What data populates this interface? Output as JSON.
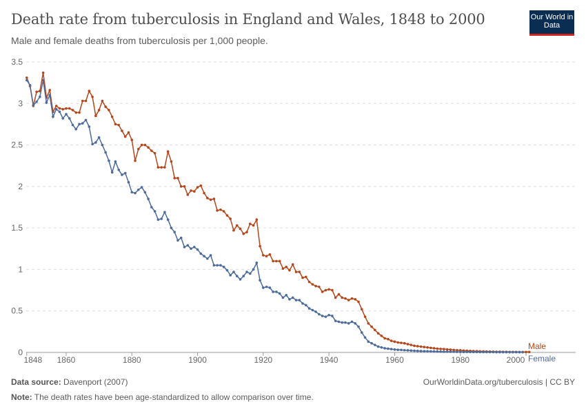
{
  "header": {
    "title": "Death rate from tuberculosis in England and Wales, 1848 to 2000",
    "subtitle": "Male and female deaths from tuberculosis per 1,000 people.",
    "logo_text": "Our World in Data"
  },
  "footer": {
    "source_label": "Data source:",
    "source": "Davenport (2007)",
    "url": "OurWorldinData.org/tuberculosis | CC BY",
    "note_label": "Note:",
    "note": "The death rates have been age-standardized to allow comparison over time."
  },
  "chart_data": {
    "type": "line",
    "title": "Death rate from tuberculosis in England and Wales, 1848 to 2000",
    "x_start": 1848,
    "x_end": 2000,
    "xlim": [
      1848,
      2000
    ],
    "ylim": [
      0,
      3.5
    ],
    "x_ticks": [
      "1848",
      "1860",
      "1880",
      "1900",
      "1920",
      "1940",
      "1960",
      "1980",
      "2000"
    ],
    "y_ticks": [
      "0",
      "0.5",
      "1",
      "1.5",
      "2",
      "2.5",
      "3",
      "3.5"
    ],
    "grid": "horizontal dashed",
    "legend": "right end labels",
    "series": [
      {
        "name": "Male",
        "color": "#b5461a",
        "values": [
          3.31,
          3.21,
          2.97,
          3.14,
          3.15,
          3.37,
          3.07,
          3.16,
          2.9,
          2.97,
          2.94,
          2.93,
          2.94,
          2.94,
          2.92,
          2.89,
          2.89,
          3.03,
          3.03,
          3.15,
          3.08,
          2.85,
          2.92,
          3.03,
          2.96,
          2.92,
          2.84,
          2.75,
          2.74,
          2.67,
          2.6,
          2.65,
          2.56,
          2.31,
          2.45,
          2.5,
          2.5,
          2.47,
          2.43,
          2.4,
          2.23,
          2.23,
          2.23,
          2.42,
          2.3,
          2.1,
          2.1,
          2.0,
          2.0,
          1.9,
          1.95,
          1.94,
          1.99,
          2.01,
          1.92,
          1.86,
          1.84,
          1.85,
          1.71,
          1.72,
          1.7,
          1.65,
          1.61,
          1.47,
          1.53,
          1.49,
          1.43,
          1.45,
          1.55,
          1.53,
          1.6,
          1.28,
          1.17,
          1.16,
          1.18,
          1.1,
          1.1,
          1.1,
          1.01,
          1.03,
          0.99,
          1.06,
          0.97,
          0.97,
          0.9,
          0.91,
          0.85,
          0.82,
          0.8,
          0.79,
          0.73,
          0.75,
          0.76,
          0.75,
          0.66,
          0.7,
          0.66,
          0.65,
          0.63,
          0.65,
          0.64,
          0.61,
          0.52,
          0.43,
          0.35,
          0.31,
          0.27,
          0.23,
          0.2,
          0.17,
          0.16,
          0.14,
          0.13,
          0.12,
          0.115,
          0.11,
          0.1,
          0.09,
          0.08,
          0.075,
          0.07,
          0.065,
          0.06,
          0.055,
          0.05,
          0.045,
          0.042,
          0.04,
          0.036,
          0.033,
          0.03,
          0.027,
          0.025,
          0.022,
          0.02,
          0.018,
          0.016,
          0.015,
          0.013,
          0.012,
          0.011,
          0.01,
          0.009,
          0.008,
          0.008,
          0.007,
          0.007,
          0.006,
          0.006,
          0.006,
          0.005,
          0.005,
          0.005,
          0.005
        ]
      },
      {
        "name": "Female",
        "color": "#4c6a9c",
        "values": [
          3.28,
          3.22,
          2.98,
          3.02,
          3.08,
          3.28,
          3.01,
          3.1,
          2.84,
          2.93,
          2.9,
          2.82,
          2.87,
          2.82,
          2.74,
          2.69,
          2.75,
          2.76,
          2.8,
          2.72,
          2.51,
          2.53,
          2.59,
          2.5,
          2.41,
          2.31,
          2.17,
          2.3,
          2.2,
          2.14,
          2.16,
          2.05,
          1.93,
          1.92,
          1.96,
          1.99,
          1.93,
          1.85,
          1.75,
          1.7,
          1.6,
          1.61,
          1.69,
          1.6,
          1.5,
          1.45,
          1.35,
          1.38,
          1.27,
          1.29,
          1.25,
          1.27,
          1.24,
          1.19,
          1.16,
          1.13,
          1.17,
          1.05,
          1.05,
          1.05,
          1.03,
          0.99,
          0.93,
          0.97,
          0.92,
          0.88,
          0.92,
          0.97,
          0.95,
          1.0,
          1.08,
          0.87,
          0.78,
          0.79,
          0.78,
          0.73,
          0.73,
          0.71,
          0.66,
          0.69,
          0.64,
          0.66,
          0.63,
          0.63,
          0.59,
          0.57,
          0.53,
          0.51,
          0.49,
          0.46,
          0.44,
          0.43,
          0.45,
          0.44,
          0.38,
          0.37,
          0.36,
          0.36,
          0.35,
          0.37,
          0.35,
          0.31,
          0.24,
          0.18,
          0.13,
          0.11,
          0.09,
          0.07,
          0.06,
          0.05,
          0.045,
          0.04,
          0.035,
          0.032,
          0.03,
          0.027,
          0.025,
          0.022,
          0.02,
          0.018,
          0.016,
          0.015,
          0.014,
          0.013,
          0.012,
          0.011,
          0.01,
          0.009,
          0.009,
          0.008,
          0.008,
          0.007,
          0.007,
          0.006,
          0.006,
          0.005,
          0.005,
          0.005,
          0.004,
          0.004,
          0.004,
          0.004,
          0.004,
          0.003,
          0.003,
          0.003,
          0.003,
          0.003,
          0.003,
          0.003,
          0.003,
          0.003
        ]
      }
    ]
  }
}
